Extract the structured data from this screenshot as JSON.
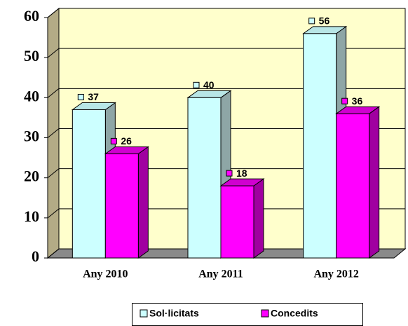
{
  "chart_data": {
    "type": "bar",
    "categories": [
      "Any 2010",
      "Any 2011",
      "Any 2012"
    ],
    "series": [
      {
        "name": "Sol·licitats",
        "color": "#ccffff",
        "values": [
          37,
          40,
          56
        ]
      },
      {
        "name": "Concedits",
        "color": "#ff00ff",
        "values": [
          26,
          18,
          36
        ]
      }
    ],
    "ylim": [
      0,
      60
    ],
    "yticks": [
      0,
      10,
      20,
      30,
      40,
      50,
      60
    ],
    "grid": true,
    "legend": "bottom"
  }
}
